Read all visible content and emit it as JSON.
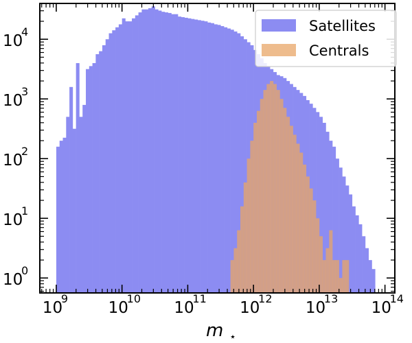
{
  "chart_data": {
    "type": "histogram",
    "xscale": "log",
    "yscale": "log",
    "xlim_exponent": [
      8.75,
      14.15
    ],
    "ylim_exponent": [
      -0.25,
      4.6
    ],
    "xlabel": "m",
    "xlabel_subscript": "⋆",
    "grid": false,
    "legend_position": "top-right",
    "x_ticks": [
      {
        "base": "10",
        "exp": "9"
      },
      {
        "base": "10",
        "exp": "10"
      },
      {
        "base": "10",
        "exp": "11"
      },
      {
        "base": "10",
        "exp": "12"
      },
      {
        "base": "10",
        "exp": "13"
      },
      {
        "base": "10",
        "exp": "14"
      }
    ],
    "y_ticks": [
      {
        "base": "10",
        "exp": "0"
      },
      {
        "base": "10",
        "exp": "1"
      },
      {
        "base": "10",
        "exp": "2"
      },
      {
        "base": "10",
        "exp": "3"
      },
      {
        "base": "10",
        "exp": "4"
      }
    ],
    "bin_width_exponent": 0.05,
    "series": [
      {
        "name": "Satellites",
        "color": "#8c8cf2",
        "bin_start_exponent": 9.0,
        "log10_counts": [
          2.2,
          2.3,
          2.35,
          2.7,
          3.2,
          2.5,
          3.6,
          2.7,
          2.9,
          3.5,
          3.55,
          3.6,
          3.75,
          3.8,
          3.9,
          4.0,
          4.1,
          4.15,
          4.2,
          4.25,
          4.35,
          4.3,
          4.3,
          4.35,
          4.4,
          4.45,
          4.5,
          4.5,
          4.52,
          4.55,
          4.5,
          4.48,
          4.46,
          4.45,
          4.44,
          4.42,
          4.42,
          4.38,
          4.37,
          4.36,
          4.35,
          4.34,
          4.33,
          4.32,
          4.31,
          4.3,
          4.28,
          4.27,
          4.25,
          4.24,
          4.22,
          4.2,
          4.18,
          4.16,
          4.13,
          4.1,
          4.05,
          4.0,
          3.95,
          3.9,
          3.82,
          3.75,
          3.68,
          3.6,
          3.55,
          3.5,
          3.45,
          3.4,
          3.38,
          3.35,
          3.3,
          3.25,
          3.2,
          3.15,
          3.1,
          3.05,
          2.98,
          2.92,
          2.85,
          2.78,
          2.7,
          2.6,
          2.45,
          2.3,
          2.2,
          2.0,
          1.85,
          1.7,
          1.55,
          1.4,
          1.2,
          1.05,
          0.9,
          0.7,
          0.5,
          0.3,
          0.15
        ]
      },
      {
        "name": "Centrals",
        "color": "#e8a567",
        "alpha": 0.75,
        "bin_start_exponent": 11.65,
        "log10_counts": [
          0.3,
          0.5,
          0.8,
          1.2,
          1.6,
          2.0,
          2.3,
          2.6,
          2.8,
          3.0,
          3.15,
          3.25,
          3.3,
          3.25,
          3.15,
          3.0,
          2.85,
          2.7,
          2.55,
          2.4,
          2.25,
          2.1,
          1.9,
          1.7,
          1.5,
          1.3,
          1.0,
          0.7,
          0.3,
          0.5,
          0.8,
          0.3,
          0.3,
          0.0,
          0.3,
          0.3
        ]
      }
    ]
  }
}
